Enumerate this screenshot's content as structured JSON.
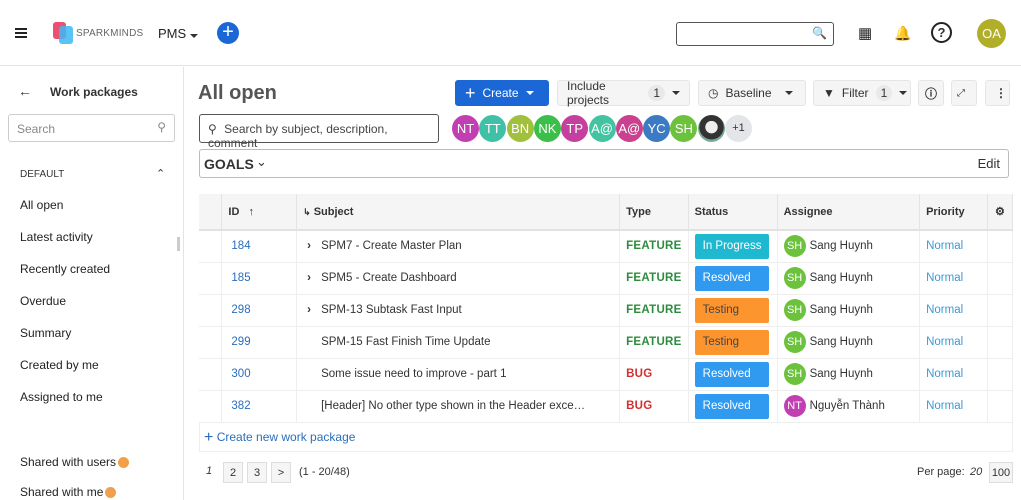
{
  "header": {
    "logo_text": "SPARKMINDS",
    "project": "PMS",
    "user_initials": "OA",
    "user_color": "#b1ae2a"
  },
  "sidebar": {
    "back_title": "Work packages",
    "search_placeholder": "Search",
    "section": "DEFAULT",
    "items": [
      "All open",
      "Latest activity",
      "Recently created",
      "Overdue",
      "Summary",
      "Created by me",
      "Assigned to me"
    ],
    "shared": [
      "Shared with users",
      "Shared with me"
    ]
  },
  "main": {
    "title": "All open",
    "toolbar": {
      "create": "Create",
      "include_projects": "Include projects",
      "include_count": "1",
      "baseline": "Baseline",
      "filter": "Filter",
      "filter_count": "1"
    },
    "search_placeholder": "Search by subject, description, comment",
    "avatars": [
      {
        "i": "NT",
        "c": "#c13fb3"
      },
      {
        "i": "TT",
        "c": "#40c0a6"
      },
      {
        "i": "BN",
        "c": "#a1c03d"
      },
      {
        "i": "NK",
        "c": "#3cbf4a"
      },
      {
        "i": "TP",
        "c": "#c53f9e"
      },
      {
        "i": "A@",
        "c": "#43c3a0"
      },
      {
        "i": "A@",
        "c": "#c9418f"
      },
      {
        "i": "YC",
        "c": "#3c7ac3"
      },
      {
        "i": "SH",
        "c": "#6cc23c"
      },
      {
        "i": "",
        "c": "#555"
      }
    ],
    "avatars_more": "+1",
    "goals": "GOALS",
    "edit": "Edit",
    "columns": [
      "ID",
      "Subject",
      "Type",
      "Status",
      "Assignee",
      "Priority"
    ],
    "rows": [
      {
        "id": "184",
        "subject": "SPM7 - Create Master Plan",
        "expand": true,
        "type": "FEATURE",
        "status": "In Progress",
        "status_color": "#1fb8d1",
        "assignee": "Sang Huynh",
        "ai": "SH",
        "ac": "#6cc23c",
        "priority": "Normal"
      },
      {
        "id": "185",
        "subject": "SPM5 - Create Dashboard",
        "expand": true,
        "type": "FEATURE",
        "status": "Resolved",
        "status_color": "#2f9aef",
        "assignee": "Sang Huynh",
        "ai": "SH",
        "ac": "#6cc23c",
        "priority": "Normal"
      },
      {
        "id": "298",
        "subject": "SPM-13 Subtask Fast Input",
        "expand": true,
        "type": "FEATURE",
        "status": "Testing",
        "status_color": "#fd952f",
        "assignee": "Sang Huynh",
        "ai": "SH",
        "ac": "#6cc23c",
        "priority": "Normal"
      },
      {
        "id": "299",
        "subject": "SPM-15 Fast Finish Time Update",
        "expand": false,
        "type": "FEATURE",
        "status": "Testing",
        "status_color": "#fd952f",
        "assignee": "Sang Huynh",
        "ai": "SH",
        "ac": "#6cc23c",
        "priority": "Normal"
      },
      {
        "id": "300",
        "subject": "Some issue need to improve - part 1",
        "expand": false,
        "type": "BUG",
        "status": "Resolved",
        "status_color": "#2f9aef",
        "assignee": "Sang Huynh",
        "ai": "SH",
        "ac": "#6cc23c",
        "priority": "Normal"
      },
      {
        "id": "382",
        "subject": "[Header] No other type shown in the Header exce…",
        "expand": false,
        "type": "BUG",
        "status": "Resolved",
        "status_color": "#2f9aef",
        "assignee": "Nguyễn Thành",
        "ai": "NT",
        "ac": "#c13fb3",
        "priority": "Normal"
      }
    ],
    "type_colors": {
      "FEATURE": "#2e8b3e",
      "BUG": "#d32f2f"
    },
    "create_new": "Create new work package",
    "pagination": {
      "current": "1",
      "pages": [
        "2",
        "3"
      ],
      "next": ">",
      "range": "(1 - 20/48)",
      "per_page_label": "Per page:",
      "per_page_options": [
        "20",
        "100"
      ]
    }
  }
}
